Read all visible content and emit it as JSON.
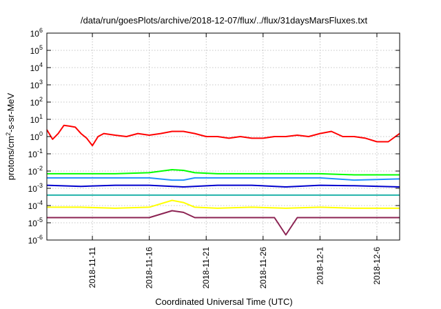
{
  "chart_data": {
    "type": "line",
    "title": "/data/run/goesPlots/archive/2018-12-07/flux/../flux/31daysMarsFluxes.txt",
    "xlabel": "Coordinated Universal Time (UTC)",
    "ylabel": {
      "base": "protons/cm",
      "sup": "2",
      "rest": "-s-sr-MeV"
    },
    "yscale": "log",
    "ylim": [
      1e-06,
      1000000.0
    ],
    "y_ticks": [
      {
        "value": 1e-06,
        "base": "10",
        "exp": "-6"
      },
      {
        "value": 1e-05,
        "base": "10",
        "exp": "-5"
      },
      {
        "value": 0.0001,
        "base": "10",
        "exp": "-4"
      },
      {
        "value": 0.001,
        "base": "10",
        "exp": "-3"
      },
      {
        "value": 0.01,
        "base": "10",
        "exp": "-2"
      },
      {
        "value": 0.1,
        "base": "10",
        "exp": "-1"
      },
      {
        "value": 1,
        "base": "10",
        "exp": "0"
      },
      {
        "value": 10,
        "base": "10",
        "exp": "1"
      },
      {
        "value": 100,
        "base": "10",
        "exp": "2"
      },
      {
        "value": 1000,
        "base": "10",
        "exp": "3"
      },
      {
        "value": 10000,
        "base": "10",
        "exp": "4"
      },
      {
        "value": 100000,
        "base": "10",
        "exp": "5"
      },
      {
        "value": 1000000,
        "base": "10",
        "exp": "6"
      }
    ],
    "xlim": [
      "2018-11-07",
      "2018-12-08"
    ],
    "x_ticks": [
      {
        "value": "2018-11-11",
        "label": "2018-11-11"
      },
      {
        "value": "2018-11-16",
        "label": "2018-11-16"
      },
      {
        "value": "2018-11-21",
        "label": "2018-11-21"
      },
      {
        "value": "2018-11-26",
        "label": "2018-11-26"
      },
      {
        "value": "2018-12-01",
        "label": "2018-12-1"
      },
      {
        "value": "2018-12-06",
        "label": "2018-12-6"
      }
    ],
    "grid": true,
    "series": [
      {
        "color": "#ff0000",
        "x": [
          "2018-11-07",
          "2018-11-07 12:00",
          "2018-11-08",
          "2018-11-08 12:00",
          "2018-11-09",
          "2018-11-09 12:00",
          "2018-11-10",
          "2018-11-10 12:00",
          "2018-11-11",
          "2018-11-11 12:00",
          "2018-11-12",
          "2018-11-13",
          "2018-11-14",
          "2018-11-15",
          "2018-11-16",
          "2018-11-17",
          "2018-11-18",
          "2018-11-19",
          "2018-11-20",
          "2018-11-21",
          "2018-11-22",
          "2018-11-23",
          "2018-11-24",
          "2018-11-25",
          "2018-11-26",
          "2018-11-27",
          "2018-11-28",
          "2018-11-29",
          "2018-11-30",
          "2018-12-01",
          "2018-12-02",
          "2018-12-03",
          "2018-12-04",
          "2018-12-05",
          "2018-12-06",
          "2018-12-07",
          "2018-12-08"
        ],
        "y": [
          2.5,
          0.7,
          1.5,
          4.5,
          4.0,
          3.5,
          1.5,
          0.8,
          0.3,
          1.0,
          1.5,
          1.2,
          1.0,
          1.5,
          1.2,
          1.5,
          2.0,
          2.0,
          1.5,
          1.0,
          1.0,
          0.8,
          1.0,
          0.8,
          0.8,
          1.0,
          1.0,
          1.2,
          1.0,
          1.5,
          2.0,
          1.0,
          1.0,
          0.8,
          0.5,
          0.5,
          1.5
        ]
      },
      {
        "color": "#00ff00",
        "x": [
          "2018-11-07",
          "2018-11-10",
          "2018-11-13",
          "2018-11-16",
          "2018-11-18",
          "2018-11-19",
          "2018-11-20",
          "2018-11-22",
          "2018-11-25",
          "2018-11-28",
          "2018-12-01",
          "2018-12-04",
          "2018-12-08"
        ],
        "y": [
          0.007,
          0.007,
          0.007,
          0.008,
          0.012,
          0.011,
          0.008,
          0.007,
          0.007,
          0.007,
          0.007,
          0.006,
          0.006
        ]
      },
      {
        "color": "#1e90ff",
        "x": [
          "2018-11-07",
          "2018-11-10",
          "2018-11-13",
          "2018-11-16",
          "2018-11-18",
          "2018-11-19",
          "2018-11-20",
          "2018-11-22",
          "2018-11-25",
          "2018-11-28",
          "2018-12-01",
          "2018-12-04",
          "2018-12-08"
        ],
        "y": [
          0.004,
          0.004,
          0.004,
          0.004,
          0.003,
          0.003,
          0.004,
          0.004,
          0.004,
          0.004,
          0.004,
          0.003,
          0.0035
        ]
      },
      {
        "color": "#0000cd",
        "x": [
          "2018-11-07",
          "2018-11-10",
          "2018-11-13",
          "2018-11-16",
          "2018-11-19",
          "2018-11-22",
          "2018-11-25",
          "2018-11-28",
          "2018-12-01",
          "2018-12-04",
          "2018-12-08"
        ],
        "y": [
          0.0015,
          0.0013,
          0.0015,
          0.0015,
          0.0012,
          0.0015,
          0.0015,
          0.0012,
          0.0015,
          0.0014,
          0.0012
        ]
      },
      {
        "color": "#20b2aa",
        "x": [
          "2018-11-07",
          "2018-11-10",
          "2018-11-13",
          "2018-11-16",
          "2018-11-19",
          "2018-11-22",
          "2018-11-25",
          "2018-11-28",
          "2018-12-01",
          "2018-12-04",
          "2018-12-08"
        ],
        "y": [
          0.0004,
          0.0004,
          0.0004,
          0.0004,
          0.0004,
          0.0004,
          0.0004,
          0.0004,
          0.0004,
          0.0004,
          0.0004
        ]
      },
      {
        "color": "#ffff00",
        "x": [
          "2018-11-07",
          "2018-11-10",
          "2018-11-13",
          "2018-11-16",
          "2018-11-18",
          "2018-11-19",
          "2018-11-20",
          "2018-11-22",
          "2018-11-25",
          "2018-11-28",
          "2018-12-01",
          "2018-12-04",
          "2018-12-08"
        ],
        "y": [
          8e-05,
          8e-05,
          7e-05,
          8e-05,
          0.0002,
          0.00015,
          8e-05,
          7e-05,
          8e-05,
          7e-05,
          8e-05,
          7e-05,
          7e-05
        ]
      },
      {
        "color": "#8b2252",
        "x": [
          "2018-11-07",
          "2018-11-10",
          "2018-11-13",
          "2018-11-16",
          "2018-11-18",
          "2018-11-19",
          "2018-11-20",
          "2018-11-22",
          "2018-11-25",
          "2018-11-27",
          "2018-11-28",
          "2018-11-29",
          "2018-12-01",
          "2018-12-04",
          "2018-12-08"
        ],
        "y": [
          2e-05,
          2e-05,
          2e-05,
          2e-05,
          5e-05,
          4e-05,
          2e-05,
          2e-05,
          2e-05,
          2e-05,
          2e-06,
          2e-05,
          2e-05,
          2e-05,
          2e-05
        ]
      }
    ]
  }
}
